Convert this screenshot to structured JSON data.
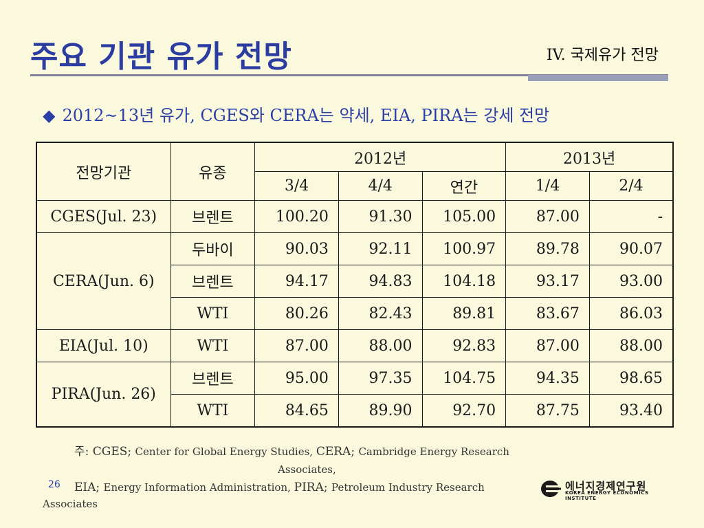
{
  "header": {
    "title": "주요 기관 유가 전망",
    "section": "IV. 국제유가 전망"
  },
  "bullet": {
    "mark": "◆",
    "text": "2012~13년 유가, CGES와 CERA는 약세, EIA, PIRA는 강세 전망"
  },
  "table": {
    "head": {
      "agency": "전망기관",
      "type": "유종",
      "year1": "2012년",
      "year2": "2013년",
      "sub": [
        "3/4",
        "4/4",
        "연간",
        "1/4",
        "2/4"
      ]
    },
    "groups": [
      {
        "agency": "CGES(Jul. 23)",
        "rows": [
          {
            "type": "브렌트",
            "values": [
              "100.20",
              "91.30",
              "105.00",
              "87.00",
              "-"
            ]
          }
        ]
      },
      {
        "agency": "CERA(Jun. 6)",
        "rows": [
          {
            "type": "두바이",
            "values": [
              "90.03",
              "92.11",
              "100.97",
              "89.78",
              "90.07"
            ]
          },
          {
            "type": "브렌트",
            "values": [
              "94.17",
              "94.83",
              "104.18",
              "93.17",
              "93.00"
            ]
          },
          {
            "type": "WTI",
            "values": [
              "80.26",
              "82.43",
              "89.81",
              "83.67",
              "86.03"
            ]
          }
        ]
      },
      {
        "agency": "EIA(Jul. 10)",
        "rows": [
          {
            "type": "WTI",
            "values": [
              "87.00",
              "88.00",
              "92.83",
              "87.00",
              "88.00"
            ]
          }
        ]
      },
      {
        "agency": "PIRA(Jun. 26)",
        "rows": [
          {
            "type": "브렌트",
            "values": [
              "95.00",
              "97.35",
              "104.75",
              "94.35",
              "98.65"
            ]
          },
          {
            "type": "WTI",
            "values": [
              "84.65",
              "89.90",
              "92.70",
              "87.75",
              "93.40"
            ]
          }
        ]
      }
    ]
  },
  "footnote": {
    "line1_prefix": "주: CGES; ",
    "line1_small": "Center for Global Energy Studies, ",
    "line1_mid": "CERA; ",
    "line1_small2": "Cambridge Energy Research",
    "line2": "Associates,",
    "line3_prefix": "EIA; ",
    "line3_small": "Energy Information Administration, ",
    "line3_mid": "PIRA; ",
    "line3_small2": "Petroleum Industry Research",
    "line4": "Associates"
  },
  "page_number": "26",
  "logo": {
    "korean": "에너지경제연구원",
    "english": "KOREA ENERGY ECONOMICS INSTITUTE",
    "mark_icon": "keei-logo-icon"
  },
  "colors": {
    "background": "#FBF9DD",
    "title": "#2B3DA0",
    "bullet": "#2C3FA6"
  }
}
